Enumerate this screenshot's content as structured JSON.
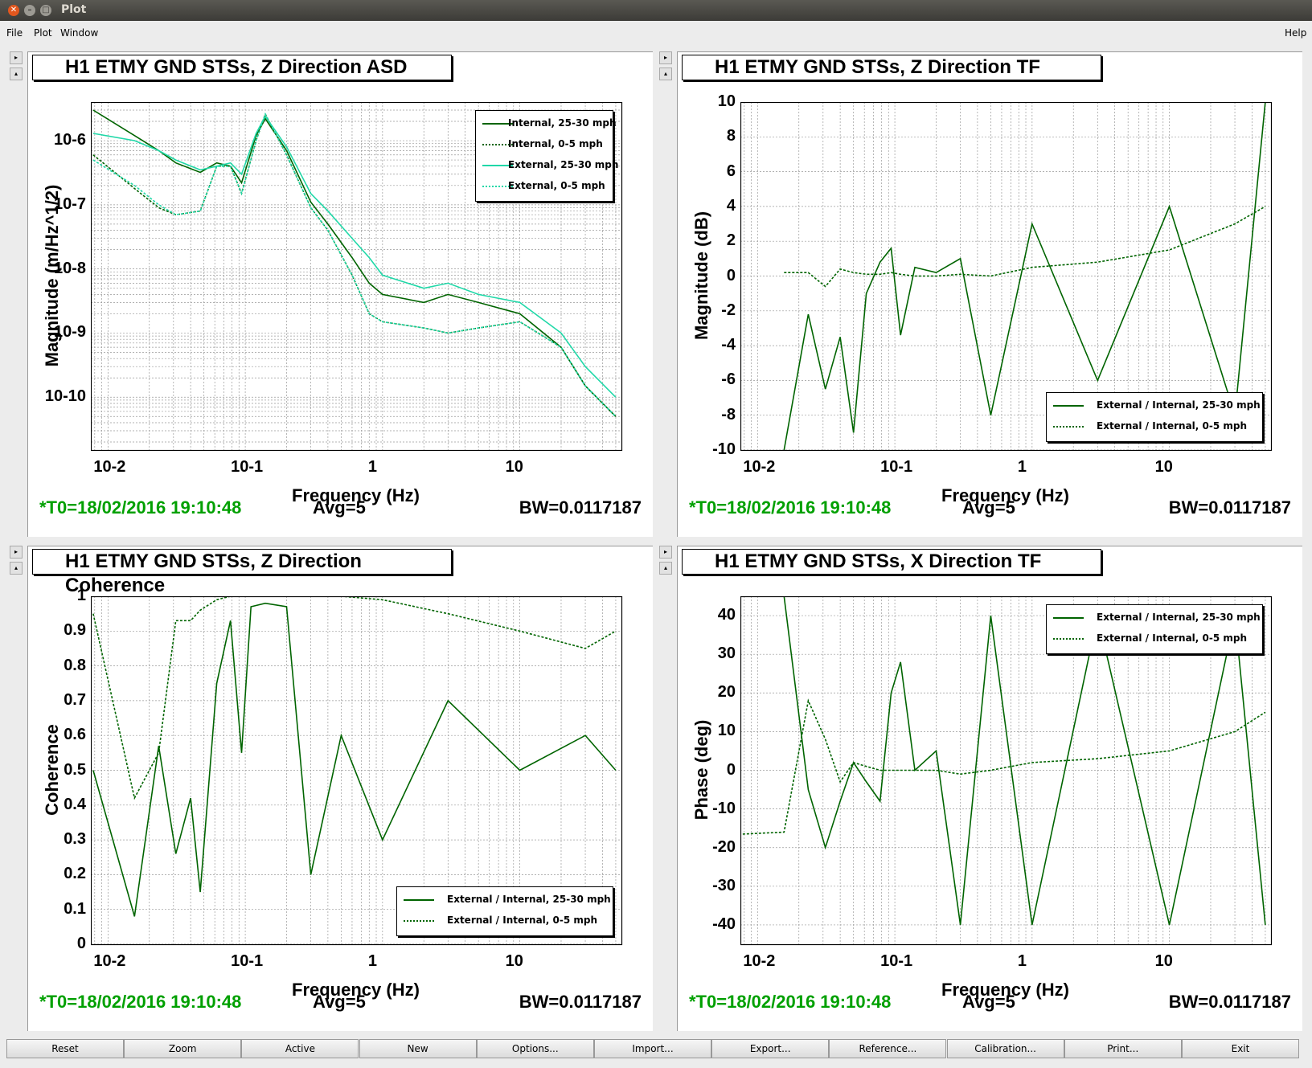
{
  "window": {
    "title": "Plot"
  },
  "menu": {
    "file": "File",
    "plot": "Plot",
    "window": "Window",
    "help": "Help"
  },
  "colors": {
    "dark_green": "#006400",
    "cyan": "#00d4a0",
    "footer_green": "#00a000"
  },
  "panels": [
    {
      "title": "H1 ETMY GND STSs, Z Direction ASD",
      "ylabel": "Magnitude (m/Hz^1/2)",
      "xlabel": "Frequency (Hz)",
      "yticks": [
        "10-6",
        "10-7",
        "10-8",
        "10-9",
        "10-10"
      ],
      "xticks": [
        "10-2",
        "10-1",
        "1",
        "10"
      ],
      "legend": [
        "Internal, 25-30 mph",
        "Internal, 0-5 mph",
        "External, 25-30 mph",
        "External, 0-5 mph"
      ],
      "footer": {
        "t0": "*T0=18/02/2016 19:10:48",
        "avg": "Avg=5",
        "bw": "BW=0.0117187"
      }
    },
    {
      "title": "H1 ETMY GND STSs, Z Direction TF",
      "ylabel": "Magnitude (dB)",
      "xlabel": "Frequency (Hz)",
      "yticks": [
        "10",
        "8",
        "6",
        "4",
        "2",
        "0",
        "-2",
        "-4",
        "-6",
        "-8",
        "-10"
      ],
      "xticks": [
        "10-2",
        "10-1",
        "1",
        "10"
      ],
      "legend": [
        "External / Internal, 25-30 mph",
        "External / Internal, 0-5 mph"
      ],
      "footer": {
        "t0": "*T0=18/02/2016 19:10:48",
        "avg": "Avg=5",
        "bw": "BW=0.0117187"
      }
    },
    {
      "title": "H1 ETMY GND STSs, Z Direction Coherence",
      "ylabel": "Coherence",
      "xlabel": "Frequency (Hz)",
      "yticks": [
        "1",
        "0.9",
        "0.8",
        "0.7",
        "0.6",
        "0.5",
        "0.4",
        "0.3",
        "0.2",
        "0.1",
        "0"
      ],
      "xticks": [
        "10-2",
        "10-1",
        "1",
        "10"
      ],
      "legend": [
        "External / Internal, 25-30 mph",
        "External / Internal, 0-5 mph"
      ],
      "footer": {
        "t0": "*T0=18/02/2016 19:10:48",
        "avg": "Avg=5",
        "bw": "BW=0.0117187"
      }
    },
    {
      "title": "H1 ETMY GND STSs, X Direction TF",
      "ylabel": "Phase (deg)",
      "xlabel": "Frequency (Hz)",
      "yticks": [
        "40",
        "30",
        "20",
        "10",
        "0",
        "-10",
        "-20",
        "-30",
        "-40"
      ],
      "xticks": [
        "10-2",
        "10-1",
        "1",
        "10"
      ],
      "legend": [
        "External / Internal, 25-30 mph",
        "External / Internal, 0-5 mph"
      ],
      "footer": {
        "t0": "*T0=18/02/2016 19:10:48",
        "avg": "Avg=5",
        "bw": "BW=0.0117187"
      }
    }
  ],
  "chart_data": [
    {
      "type": "line",
      "title": "H1 ETMY GND STSs, Z Direction ASD",
      "xlabel": "Frequency (Hz)",
      "ylabel": "Magnitude (m/Hz^1/2)",
      "xscale": "log",
      "yscale": "log",
      "xlim": [
        0.0075,
        55
      ],
      "ylim": [
        1.5e-11,
        4e-06
      ],
      "grid": true,
      "legend_position": "top-right",
      "x": [
        0.0078,
        0.0156,
        0.0234,
        0.0312,
        0.047,
        0.062,
        0.078,
        0.094,
        0.12,
        0.14,
        0.2,
        0.3,
        0.4,
        0.6,
        0.8,
        1.0,
        2,
        3,
        5,
        10,
        20,
        30,
        50
      ],
      "series": [
        {
          "name": "Internal, 25-30 mph",
          "color": "#006400",
          "style": "solid",
          "values": [
            3e-06,
            1.2e-06,
            7e-07,
            4.5e-07,
            3.2e-07,
            4.5e-07,
            4e-07,
            2.2e-07,
            1.2e-06,
            2.2e-06,
            7e-07,
            1.1e-07,
            5e-08,
            1.5e-08,
            6e-09,
            4e-09,
            3e-09,
            4e-09,
            3e-09,
            2e-09,
            6e-10,
            1.5e-10,
            5e-11
          ]
        },
        {
          "name": "Internal, 0-5 mph",
          "color": "#006400",
          "style": "dotted",
          "values": [
            6e-07,
            1.8e-07,
            9e-08,
            7e-08,
            8e-08,
            4e-07,
            4e-07,
            1.5e-07,
            1e-06,
            2.6e-06,
            6e-07,
            9e-08,
            4e-08,
            8e-09,
            2e-09,
            1.5e-09,
            1.2e-09,
            1e-09,
            1.2e-09,
            1.5e-09,
            6e-10,
            1.5e-10,
            5e-11
          ]
        },
        {
          "name": "External, 25-30 mph",
          "color": "#20d8a8",
          "style": "solid",
          "values": [
            1.3e-06,
            1e-06,
            7e-07,
            5e-07,
            3.5e-07,
            4e-07,
            4.5e-07,
            3e-07,
            1.3e-06,
            2.4e-06,
            8e-07,
            1.5e-07,
            8e-08,
            3e-08,
            1.5e-08,
            8e-09,
            5e-09,
            6e-09,
            4e-09,
            3e-09,
            1e-09,
            3e-10,
            1e-10
          ]
        },
        {
          "name": "External, 0-5 mph",
          "color": "#20d8a8",
          "style": "dotted",
          "values": [
            5e-07,
            2e-07,
            1e-07,
            7e-08,
            8e-08,
            4e-07,
            4e-07,
            1.5e-07,
            1e-06,
            2.6e-06,
            6e-07,
            9e-08,
            4e-08,
            8e-09,
            2e-09,
            1.5e-09,
            1.2e-09,
            1e-09,
            1.2e-09,
            1.5e-09,
            6e-10,
            1.5e-10,
            5e-11
          ]
        }
      ]
    },
    {
      "type": "line",
      "title": "H1 ETMY GND STSs, Z Direction TF",
      "xlabel": "Frequency (Hz)",
      "ylabel": "Magnitude (dB)",
      "xscale": "log",
      "xlim": [
        0.0075,
        55
      ],
      "ylim": [
        -10,
        10
      ],
      "grid": true,
      "legend_position": "bottom-right",
      "x": [
        0.0156,
        0.0234,
        0.0312,
        0.04,
        0.05,
        0.062,
        0.078,
        0.094,
        0.11,
        0.14,
        0.2,
        0.3,
        0.5,
        1,
        3,
        10,
        30,
        50
      ],
      "series": [
        {
          "name": "External / Internal, 25-30 mph",
          "color": "#006400",
          "style": "solid",
          "values": [
            -10,
            -2.2,
            -6.5,
            -3.5,
            -9,
            -1,
            0.8,
            1.6,
            -3.4,
            0.5,
            0.2,
            1,
            -8,
            3,
            -6,
            4,
            -8,
            10
          ]
        },
        {
          "name": "External / Internal, 0-5 mph",
          "color": "#006400",
          "style": "dotted",
          "values": [
            0.2,
            0.2,
            -0.6,
            0.4,
            0.2,
            0.1,
            0.1,
            0.2,
            0.1,
            0,
            0,
            0.1,
            0,
            0.5,
            0.8,
            1.5,
            3,
            4
          ]
        }
      ]
    },
    {
      "type": "line",
      "title": "H1 ETMY GND STSs, Z Direction Coherence",
      "xlabel": "Frequency (Hz)",
      "ylabel": "Coherence",
      "xscale": "log",
      "xlim": [
        0.0075,
        55
      ],
      "ylim": [
        0,
        1
      ],
      "grid": true,
      "legend_position": "bottom-right",
      "x": [
        0.0078,
        0.0156,
        0.0234,
        0.0312,
        0.04,
        0.047,
        0.062,
        0.078,
        0.094,
        0.11,
        0.14,
        0.2,
        0.3,
        0.5,
        1,
        3,
        10,
        30,
        50
      ],
      "series": [
        {
          "name": "External / Internal, 25-30 mph",
          "color": "#006400",
          "style": "solid",
          "values": [
            0.5,
            0.08,
            0.57,
            0.26,
            0.42,
            0.15,
            0.75,
            0.93,
            0.55,
            0.97,
            0.98,
            0.97,
            0.2,
            0.6,
            0.3,
            0.7,
            0.5,
            0.6,
            0.5
          ]
        },
        {
          "name": "External / Internal, 0-5 mph",
          "color": "#006400",
          "style": "dotted",
          "values": [
            0.95,
            0.42,
            0.55,
            0.93,
            0.93,
            0.96,
            0.99,
            1,
            1,
            1,
            1,
            1,
            1,
            1,
            0.99,
            0.95,
            0.9,
            0.85,
            0.9
          ]
        }
      ]
    },
    {
      "type": "line",
      "title": "H1 ETMY GND STSs, X Direction TF",
      "xlabel": "Frequency (Hz)",
      "ylabel": "Phase (deg)",
      "xscale": "log",
      "xlim": [
        0.0075,
        55
      ],
      "ylim": [
        -45,
        45
      ],
      "grid": true,
      "legend_position": "top-right",
      "x": [
        0.0078,
        0.0156,
        0.0234,
        0.0312,
        0.04,
        0.05,
        0.062,
        0.078,
        0.094,
        0.11,
        0.14,
        0.2,
        0.3,
        0.5,
        1,
        3,
        10,
        30,
        50
      ],
      "series": [
        {
          "name": "External / Internal, 25-30 mph",
          "color": "#006400",
          "style": "solid",
          "values": [
            45,
            45,
            -5,
            -20,
            -8,
            2,
            -3,
            -8,
            20,
            28,
            0,
            5,
            -40,
            40,
            -40,
            40,
            -40,
            40,
            -40
          ]
        },
        {
          "name": "External / Internal, 0-5 mph",
          "color": "#006400",
          "style": "dotted",
          "values": [
            -16.5,
            -16,
            18,
            8,
            -3,
            2,
            1,
            0,
            0,
            0,
            0,
            0,
            -1,
            0,
            2,
            3,
            5,
            10,
            15
          ]
        }
      ]
    }
  ],
  "buttons": [
    "Reset",
    "Zoom",
    "Active",
    "New",
    "Options...",
    "Import...",
    "Export...",
    "Reference...",
    "Calibration...",
    "Print...",
    "Exit"
  ]
}
